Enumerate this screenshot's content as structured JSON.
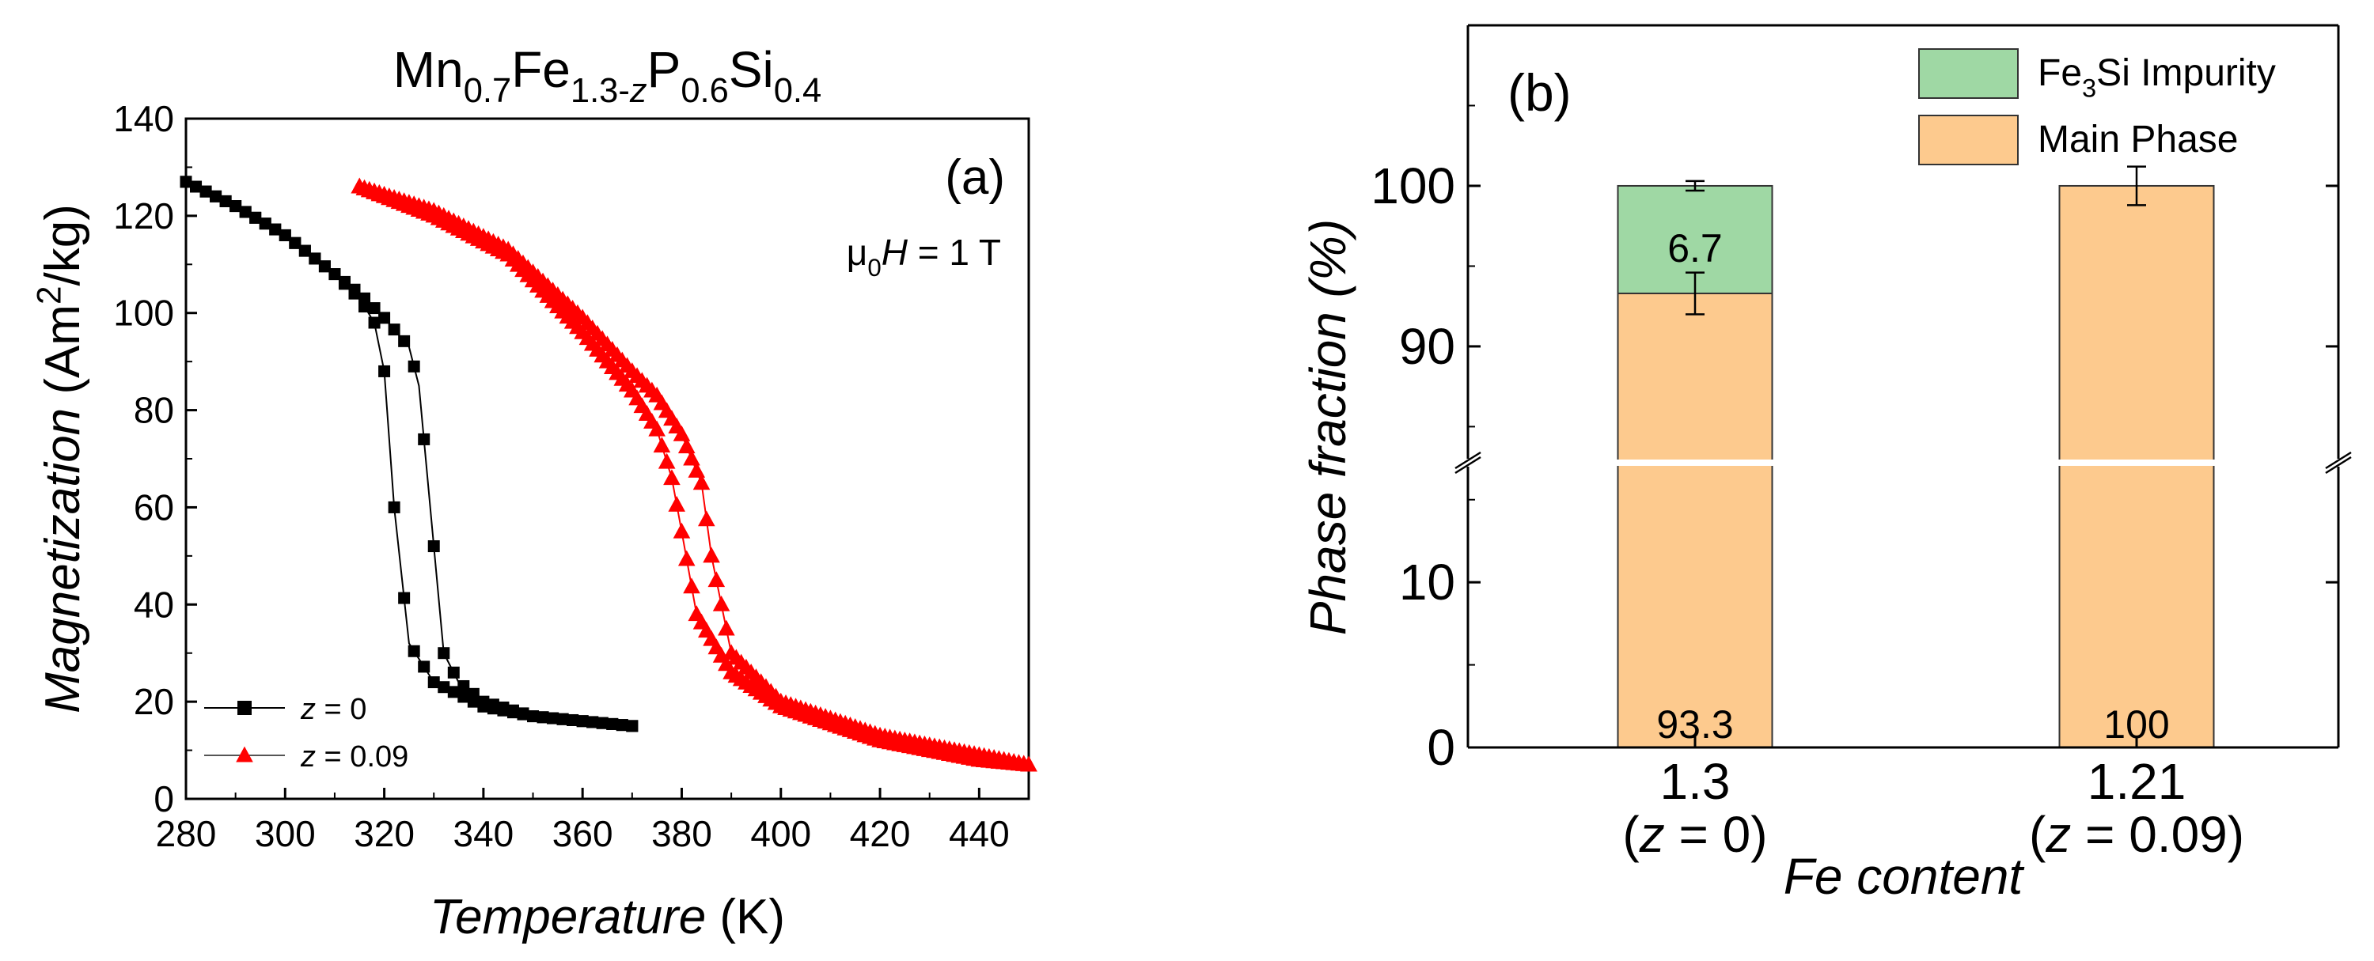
{
  "chart_data": [
    {
      "panel": "(a)",
      "type": "scatter",
      "title_parts": [
        {
          "t": "Mn",
          "s": "base"
        },
        {
          "t": "0.7",
          "s": "sub"
        },
        {
          "t": "Fe",
          "s": "base"
        },
        {
          "t": "1.3-",
          "s": "sub"
        },
        {
          "t": "z",
          "s": "subital"
        },
        {
          "t": "P",
          "s": "base"
        },
        {
          "t": "0.6",
          "s": "sub"
        },
        {
          "t": "Si",
          "s": "base"
        },
        {
          "t": "0.4",
          "s": "sub"
        }
      ],
      "annotation_parts": [
        {
          "t": "μ",
          "s": "base"
        },
        {
          "t": "0",
          "s": "sub"
        },
        {
          "t": "H",
          "s": "ital"
        },
        {
          "t": " = 1 T",
          "s": "base"
        }
      ],
      "xlabel_parts": [
        {
          "t": "Temperature",
          "s": "ital"
        },
        {
          "t": " (K)",
          "s": "base"
        }
      ],
      "ylabel_parts": [
        {
          "t": "Magnetization",
          "s": "ital"
        },
        {
          "t": " (Am",
          "s": "base"
        },
        {
          "t": "2",
          "s": "sup"
        },
        {
          "t": "/kg)",
          "s": "base"
        }
      ],
      "xlim": [
        280,
        450
      ],
      "ylim": [
        0,
        140
      ],
      "xticks": [
        280,
        300,
        320,
        340,
        360,
        380,
        400,
        420,
        440
      ],
      "yticks": [
        0,
        20,
        40,
        60,
        80,
        100,
        120,
        140
      ],
      "legend_position": "bottom-left",
      "series": [
        {
          "name": "z = 0",
          "legend_parts": [
            {
              "t": "z",
              "s": "ital"
            },
            {
              "t": " = 0",
              "s": "base"
            }
          ],
          "color": "#000000",
          "marker": "square",
          "branches": [
            {
              "x": [
                280,
                290,
                300,
                305,
                310,
                315,
                318,
                320,
                322,
                325,
                330,
                340,
                350,
                360,
                370
              ],
              "y": [
                127,
                122,
                116,
                112,
                108,
                103,
                98,
                88,
                60,
                32,
                24,
                19,
                17,
                16,
                15
              ]
            },
            {
              "x": [
                280,
                290,
                300,
                305,
                310,
                315,
                320,
                325,
                327,
                328,
                330,
                332,
                335,
                340,
                350,
                360,
                370
              ],
              "y": [
                127,
                122,
                116,
                112,
                108,
                104,
                99,
                93,
                85,
                74,
                52,
                30,
                24,
                20,
                17,
                16,
                15
              ]
            }
          ]
        },
        {
          "name": "z = 0.09",
          "legend_parts": [
            {
              "t": "z",
              "s": "ital"
            },
            {
              "t": " = 0.09",
              "s": "base"
            }
          ],
          "color": "#ff0000",
          "marker": "triangle",
          "branches": [
            {
              "x": [
                315,
                330,
                345,
                360,
                370,
                375,
                378,
                380,
                383,
                390,
                400,
                420,
                440,
                450
              ],
              "y": [
                126,
                120,
                112,
                96,
                84,
                76,
                66,
                55,
                38,
                26,
                19,
                12,
                8,
                7
              ]
            },
            {
              "x": [
                315,
                330,
                345,
                360,
                370,
                375,
                380,
                384,
                386,
                390,
                400,
                420,
                440,
                450
              ],
              "y": [
                126,
                121,
                113,
                99,
                88,
                83,
                75,
                65,
                50,
                30,
                20,
                13,
                9,
                7
              ]
            }
          ]
        }
      ]
    },
    {
      "panel": "(b)",
      "type": "bar",
      "stacked": true,
      "broken_y_axis": true,
      "categories": [
        {
          "value_label": "1.3",
          "sub_parts": [
            {
              "t": "(",
              "s": "base"
            },
            {
              "t": "z",
              "s": "ital"
            },
            {
              "t": " = 0)",
              "s": "base"
            }
          ]
        },
        {
          "value_label": "1.21",
          "sub_parts": [
            {
              "t": "(",
              "s": "base"
            },
            {
              "t": "z",
              "s": "ital"
            },
            {
              "t": " = 0.09)",
              "s": "base"
            }
          ]
        }
      ],
      "series": [
        {
          "name": "Main Phase",
          "legend_parts": [
            {
              "t": "Main Phase",
              "s": "base"
            }
          ],
          "color": "#fdca8e",
          "values": [
            93.3,
            100
          ],
          "errors": [
            1.3,
            1.2
          ],
          "labels": [
            "93.3",
            "100"
          ]
        },
        {
          "name": "Fe3Si Impurity",
          "legend_parts": [
            {
              "t": "Fe",
              "s": "base"
            },
            {
              "t": "3",
              "s": "sub"
            },
            {
              "t": "Si Impurity",
              "s": "base"
            }
          ],
          "color": "#9fd8a4",
          "values": [
            6.7,
            0
          ],
          "errors": [
            0.3,
            0
          ],
          "labels": [
            "6.7",
            ""
          ]
        }
      ],
      "xlabel": "Fe content",
      "ylabel": "Phase fraction (%)",
      "ylim_lower": [
        0,
        17
      ],
      "ylim_upper": [
        83,
        110
      ],
      "yticks_lower": [
        0,
        10
      ],
      "yticks_upper": [
        90,
        100
      ],
      "legend_position": "top-right"
    }
  ]
}
